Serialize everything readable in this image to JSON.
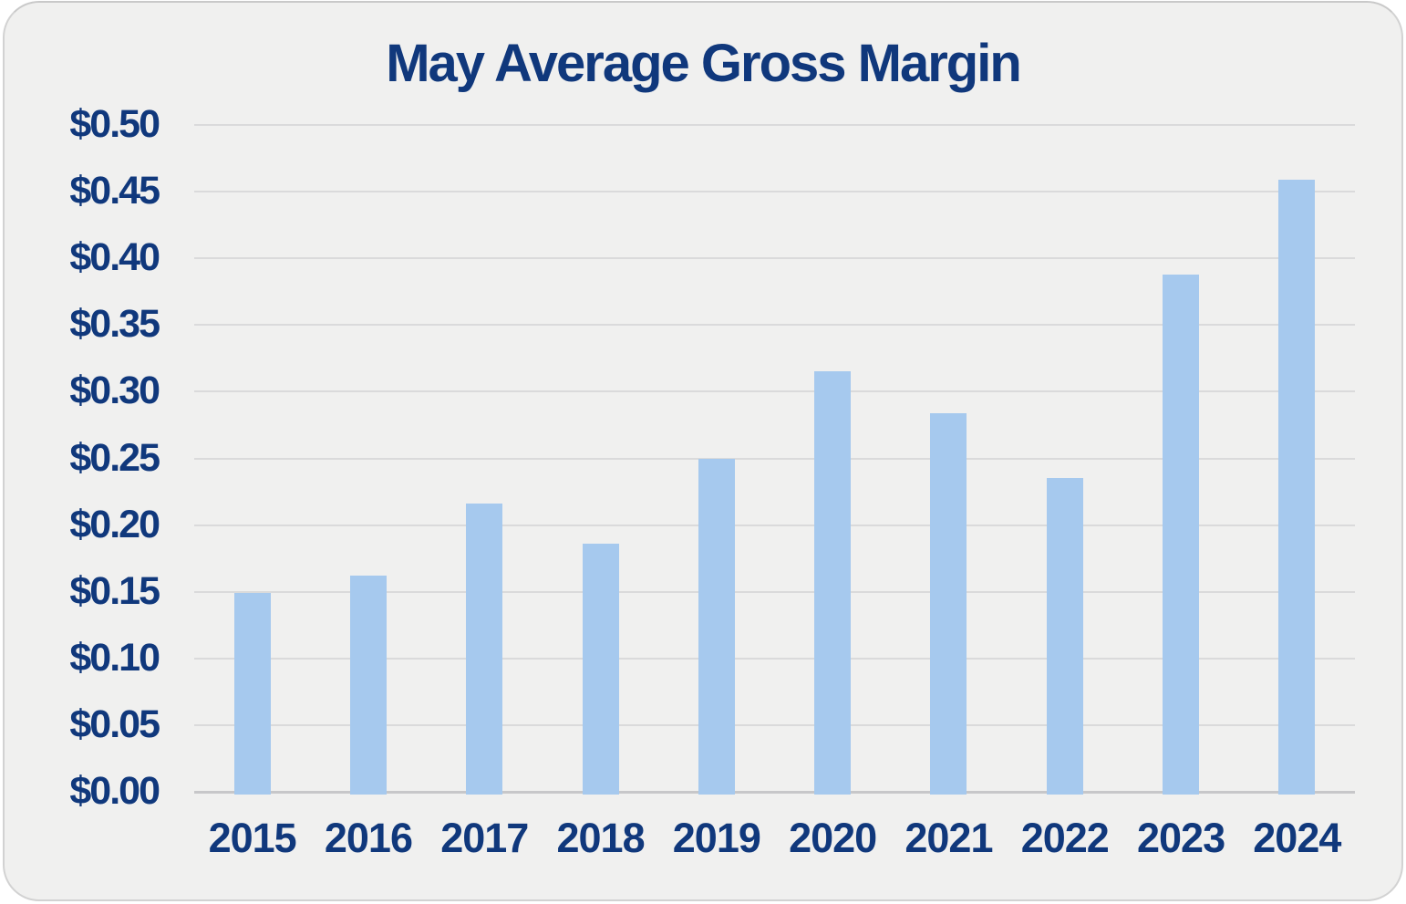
{
  "card": {
    "background": "#f0f0ef",
    "border_color": "#d2d2d2"
  },
  "colors": {
    "text": "#10387c",
    "bar": "#a6c9ee",
    "gridline": "#dadadb",
    "baseline": "#c7c7c9",
    "page_background": "#ffffff"
  },
  "chart_data": {
    "type": "bar",
    "title": "May Average Gross Margin",
    "categories": [
      "2015",
      "2016",
      "2017",
      "2018",
      "2019",
      "2020",
      "2021",
      "2022",
      "2023",
      "2024"
    ],
    "values": [
      0.149,
      0.162,
      0.216,
      0.186,
      0.25,
      0.315,
      0.284,
      0.235,
      0.388,
      0.459
    ],
    "xlabel": "",
    "ylabel": "",
    "ylim": [
      0,
      0.5
    ],
    "yticks": [
      0.0,
      0.05,
      0.1,
      0.15,
      0.2,
      0.25,
      0.3,
      0.35,
      0.4,
      0.45,
      0.5
    ],
    "ytick_labels": [
      "$0.00",
      "$0.05",
      "$0.10",
      "$0.15",
      "$0.20",
      "$0.25",
      "$0.30",
      "$0.35",
      "$0.40",
      "$0.45",
      "$0.50"
    ],
    "grid": "horizontal",
    "legend": "none",
    "single_series": true
  }
}
